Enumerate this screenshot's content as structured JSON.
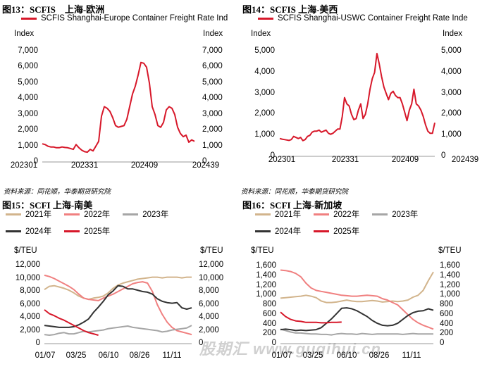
{
  "figures": [
    {
      "title": "图13：SCFIS　上海-欧洲",
      "legend": "SCFIS Shanghai-Europe Container Freight Rate Ind",
      "left_unit": "Index",
      "right_unit": "Index",
      "source": ""
    },
    {
      "title": "图14：SCFIS 上海-美西",
      "legend": "SCFIS Shanghai-USWC Container Freight Rate Inde",
      "left_unit": "Index",
      "right_unit": "Index",
      "source": "资料来源：同花顺，华泰期货研究院"
    },
    {
      "title": "图15：SCFI 上海-南美",
      "left_unit": "$/TEU",
      "right_unit": "$/TEU",
      "source": "资料来源：同花顺，华泰期货研究院"
    },
    {
      "title": "图16：SCFI 上海-新加坡",
      "left_unit": "$/TEU",
      "right_unit": "$/TEU",
      "source": ""
    }
  ],
  "watermark": "股期汇 www.guqihui.cn",
  "colors": {
    "red": "#d7182a",
    "tan": "#d2b48c",
    "pink": "#f08080",
    "gray": "#a6a6a6",
    "dark": "#333333"
  },
  "chart_data": [
    {
      "type": "line",
      "x_ticks": [
        "202301",
        "202331",
        "202409",
        "202439"
      ],
      "ylim": [
        0,
        7000
      ],
      "y_ticks": [
        "0",
        "1,000",
        "2,000",
        "3,000",
        "4,000",
        "5,000",
        "6,000",
        "7,000"
      ],
      "series": [
        {
          "name": "SCFIS Shanghai-Europe Container Freight Rate Ind",
          "color": "red",
          "values": [
            1150,
            1100,
            1000,
            950,
            950,
            900,
            900,
            950,
            920,
            900,
            850,
            800,
            1100,
            900,
            750,
            650,
            620,
            800,
            700,
            1000,
            1300,
            2900,
            3500,
            3400,
            3200,
            2800,
            2300,
            2200,
            2250,
            2300,
            2700,
            3500,
            4300,
            4800,
            5500,
            6300,
            6250,
            6000,
            5000,
            3500,
            3000,
            2300,
            2200,
            2500,
            3300,
            3500,
            3400,
            3000,
            2200,
            1800,
            1600,
            1700,
            1250,
            1400,
            1300
          ]
        }
      ]
    },
    {
      "type": "line",
      "x_ticks": [
        "202301",
        "202331",
        "202409",
        "202439"
      ],
      "ylim": [
        0,
        5000
      ],
      "y_ticks": [
        "0",
        "1,000",
        "2,000",
        "3,000",
        "4,000",
        "5,000"
      ],
      "series": [
        {
          "name": "SCFIS Shanghai-USWC Container Freight Rate Inde",
          "color": "red",
          "values": [
            850,
            820,
            800,
            780,
            760,
            800,
            950,
            900,
            850,
            900,
            750,
            800,
            950,
            1000,
            1150,
            1200,
            1200,
            1250,
            1150,
            1200,
            1250,
            1100,
            1050,
            1100,
            1200,
            1300,
            1300,
            1900,
            2800,
            2500,
            2400,
            2000,
            1750,
            1800,
            2200,
            2500,
            1800,
            2000,
            2500,
            3200,
            3700,
            4000,
            4900,
            4400,
            3800,
            3300,
            3000,
            2700,
            3000,
            3100,
            2900,
            2800,
            2800,
            2500,
            2100,
            1700,
            2200,
            2500,
            3200,
            2500,
            2400,
            2200,
            1900,
            1500,
            1200,
            1100,
            1100,
            1600
          ]
        }
      ]
    },
    {
      "type": "line",
      "x_ticks": [
        "01/07",
        "03/25",
        "06/10",
        "08/26",
        "11/11"
      ],
      "ylim": [
        0,
        12000
      ],
      "y_ticks": [
        "0",
        "2,000",
        "4,000",
        "6,000",
        "8,000",
        "10,000",
        "12,000"
      ],
      "series": [
        {
          "name": "2021年",
          "color": "tan",
          "values": [
            8300,
            8800,
            8900,
            8700,
            8500,
            8200,
            7800,
            7300,
            7000,
            6800,
            7000,
            7100,
            7300,
            7800,
            8500,
            9000,
            9300,
            9500,
            9700,
            9900,
            10000,
            10100,
            10200,
            10200,
            10100,
            10200,
            10200,
            10200,
            10100,
            10200,
            10200
          ]
        },
        {
          "name": "2022年",
          "color": "pink",
          "values": [
            10500,
            10300,
            10000,
            9600,
            9200,
            8800,
            8300,
            7600,
            7000,
            6800,
            6700,
            6600,
            7000,
            7300,
            7600,
            8000,
            8400,
            8800,
            9200,
            9400,
            9500,
            9300,
            8000,
            6000,
            4500,
            3300,
            2500,
            2000,
            1800,
            1600,
            1400
          ]
        },
        {
          "name": "2023年",
          "color": "gray",
          "values": [
            1400,
            1300,
            1400,
            1600,
            1700,
            1500,
            1500,
            1700,
            1900,
            1800,
            1900,
            2000,
            2100,
            2300,
            2400,
            2500,
            2600,
            2700,
            2500,
            2400,
            2300,
            2200,
            2100,
            2000,
            1800,
            1900,
            2100,
            2200,
            2300,
            2400,
            2800
          ]
        },
        {
          "name": "2024年",
          "color": "dark",
          "values": [
            2800,
            2700,
            2600,
            2500,
            2500,
            2500,
            2600,
            2900,
            3300,
            3800,
            4800,
            5600,
            6500,
            7500,
            8100,
            8900,
            8800,
            8400,
            8400,
            8200,
            8000,
            7900,
            7600,
            6900,
            6500,
            6300,
            6200,
            6300,
            5500,
            5300,
            5500
          ]
        },
        {
          "name": "2025年",
          "color": "red",
          "values": [
            5200,
            4600,
            4300,
            3900,
            3600,
            3200,
            2800,
            2400,
            2000,
            1700,
            1500,
            1300
          ]
        }
      ]
    },
    {
      "type": "line",
      "x_ticks": [
        "01/07",
        "03/25",
        "06/10",
        "08/26",
        "11/11"
      ],
      "ylim": [
        0,
        1600
      ],
      "y_ticks": [
        "0",
        "200",
        "400",
        "600",
        "800",
        "1,000",
        "1,200",
        "1,400",
        "1,600"
      ],
      "series": [
        {
          "name": "2021年",
          "color": "tan",
          "values": [
            940,
            950,
            960,
            970,
            980,
            1000,
            980,
            950,
            880,
            850,
            850,
            860,
            880,
            900,
            880,
            870,
            870,
            880,
            890,
            880,
            860,
            870,
            880,
            870,
            880,
            900,
            960,
            1000,
            1100,
            1300,
            1480
          ]
        },
        {
          "name": "2022年",
          "color": "pink",
          "values": [
            1520,
            1510,
            1490,
            1450,
            1380,
            1250,
            1150,
            1100,
            1080,
            1060,
            1040,
            1020,
            1000,
            990,
            980,
            980,
            990,
            1000,
            990,
            980,
            930,
            900,
            850,
            800,
            700,
            600,
            500,
            430,
            380,
            340,
            300
          ]
        },
        {
          "name": "2023年",
          "color": "gray",
          "values": [
            300,
            270,
            240,
            220,
            220,
            210,
            200,
            200,
            190,
            190,
            180,
            200,
            210,
            200,
            200,
            190,
            210,
            200,
            190,
            200,
            200,
            200,
            200,
            200,
            190,
            200,
            210,
            200,
            200,
            200,
            200
          ]
        },
        {
          "name": "2024年",
          "color": "dark",
          "values": [
            290,
            300,
            290,
            270,
            280,
            270,
            280,
            290,
            330,
            420,
            510,
            620,
            730,
            740,
            720,
            680,
            620,
            560,
            480,
            420,
            380,
            370,
            380,
            420,
            500,
            580,
            640,
            670,
            680,
            720,
            690
          ]
        },
        {
          "name": "2025年",
          "color": "red",
          "values": [
            650,
            560,
            500,
            470,
            460,
            440,
            440,
            440,
            430,
            430,
            440,
            440,
            445
          ]
        }
      ]
    }
  ]
}
